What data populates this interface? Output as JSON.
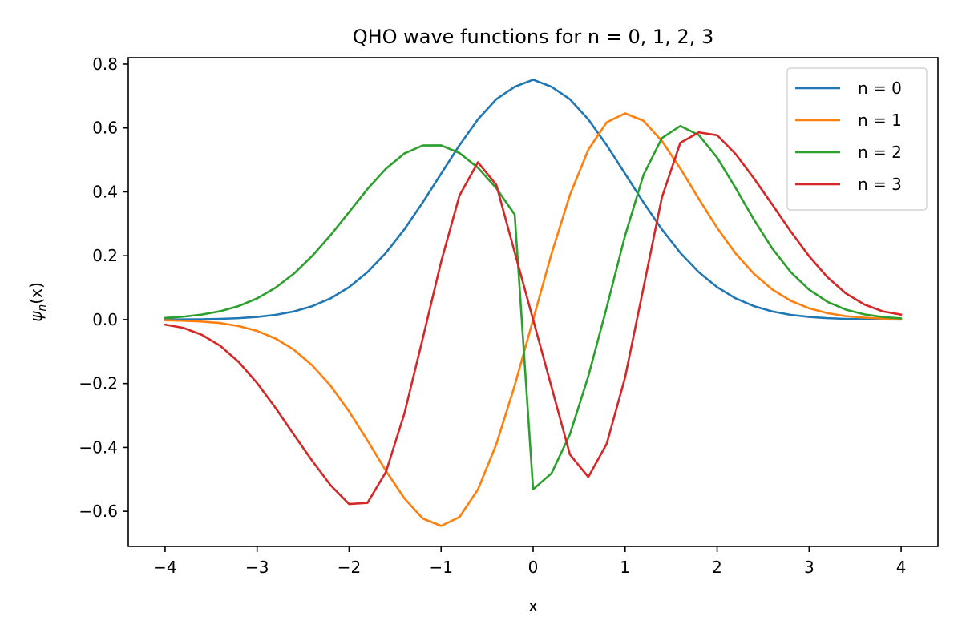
{
  "chart_data": {
    "type": "line",
    "title": "QHO wave functions for n = 0, 1, 2, 3",
    "xlabel": "x",
    "ylabel_base": "ψ",
    "ylabel_sub": "n",
    "ylabel_tail": "(x)",
    "xlim": [
      -4.4,
      4.4
    ],
    "ylim": [
      -0.71,
      0.82
    ],
    "xticks": [
      -4,
      -3,
      -2,
      -1,
      0,
      1,
      2,
      3,
      4
    ],
    "xtick_labels": [
      "−4",
      "−3",
      "−2",
      "−1",
      "0",
      "1",
      "2",
      "3",
      "4"
    ],
    "yticks": [
      -0.6,
      -0.4,
      -0.2,
      0.0,
      0.2,
      0.4,
      0.6,
      0.8
    ],
    "ytick_labels": [
      "−0.6",
      "−0.4",
      "−0.2",
      "0.0",
      "0.2",
      "0.4",
      "0.6",
      "0.8"
    ],
    "grid": false,
    "legend_position": "top-right",
    "x": [
      -4.0,
      -3.8,
      -3.6,
      -3.4,
      -3.2,
      -3.0,
      -2.8,
      -2.6,
      -2.4,
      -2.2,
      -2.0,
      -1.8,
      -1.6,
      -1.4,
      -1.2,
      -1.0,
      -0.8,
      -0.6,
      -0.4,
      -0.2,
      0.0,
      0.2,
      0.4,
      0.6,
      0.8,
      1.0,
      1.2,
      1.4,
      1.6,
      1.8,
      2.0,
      2.2,
      2.4,
      2.6,
      2.8,
      3.0,
      3.2,
      3.4,
      3.6,
      3.8,
      4.0
    ],
    "series": [
      {
        "name": "n = 0",
        "color": "#1f77b4",
        "values": [
          0.0003,
          0.0006,
          0.0011,
          0.0023,
          0.0045,
          0.0084,
          0.0149,
          0.0256,
          0.0422,
          0.0667,
          0.1016,
          0.1487,
          0.209,
          0.2824,
          0.3667,
          0.4566,
          0.5461,
          0.6268,
          0.69,
          0.7291,
          0.7511,
          0.7291,
          0.69,
          0.6268,
          0.5461,
          0.4566,
          0.3667,
          0.2824,
          0.209,
          0.1487,
          0.1016,
          0.0667,
          0.0422,
          0.0256,
          0.0149,
          0.0084,
          0.0045,
          0.0023,
          0.0011,
          0.0006,
          0.0003
        ]
      },
      {
        "name": "n = 1",
        "color": "#ff7f0e",
        "values": [
          -0.0019,
          -0.0034,
          -0.0061,
          -0.0108,
          -0.0202,
          -0.0354,
          -0.0591,
          -0.0941,
          -0.1433,
          -0.2075,
          -0.2874,
          -0.3785,
          -0.473,
          -0.5592,
          -0.6225,
          -0.6457,
          -0.6178,
          -0.5318,
          -0.3903,
          -0.2062,
          0.0,
          0.2062,
          0.3903,
          0.5318,
          0.6178,
          0.6457,
          0.6225,
          0.5592,
          0.473,
          0.3785,
          0.2874,
          0.2075,
          0.1433,
          0.0941,
          0.0591,
          0.0354,
          0.0202,
          0.0108,
          0.0061,
          0.0034,
          0.0019
        ]
      },
      {
        "name": "n = 2",
        "color": "#2ca02c",
        "values": [
          0.0052,
          0.0092,
          0.0158,
          0.0263,
          0.0425,
          0.0663,
          0.0998,
          0.144,
          0.1996,
          0.265,
          0.3368,
          0.4089,
          0.4724,
          0.52,
          0.5451,
          0.5456,
          0.5215,
          0.4756,
          0.4114,
          0.329,
          -0.5311,
          -0.481,
          -0.3592,
          -0.1773,
          0.0386,
          0.2636,
          0.4531,
          0.5684,
          0.6064,
          0.578,
          0.5072,
          0.4125,
          0.3132,
          0.2227,
          0.149,
          0.0937,
          0.0556,
          0.0311,
          0.0164,
          0.0081,
          0.0038
        ]
      },
      {
        "name": "n = 3",
        "color": "#d62728",
        "values": [
          -0.0156,
          -0.0259,
          -0.0475,
          -0.082,
          -0.1324,
          -0.1985,
          -0.276,
          -0.36,
          -0.4423,
          -0.5187,
          -0.5773,
          -0.5735,
          -0.477,
          -0.295,
          -0.0596,
          0.1807,
          0.3887,
          0.4925,
          0.4221,
          0.2106,
          0.0,
          -0.2106,
          -0.4221,
          -0.4925,
          -0.3887,
          -0.1807,
          0.1005,
          0.383,
          0.5536,
          0.5862,
          0.5773,
          0.5187,
          0.4423,
          0.36,
          0.276,
          0.1985,
          0.1324,
          0.082,
          0.0475,
          0.0259,
          0.0156
        ]
      }
    ]
  }
}
